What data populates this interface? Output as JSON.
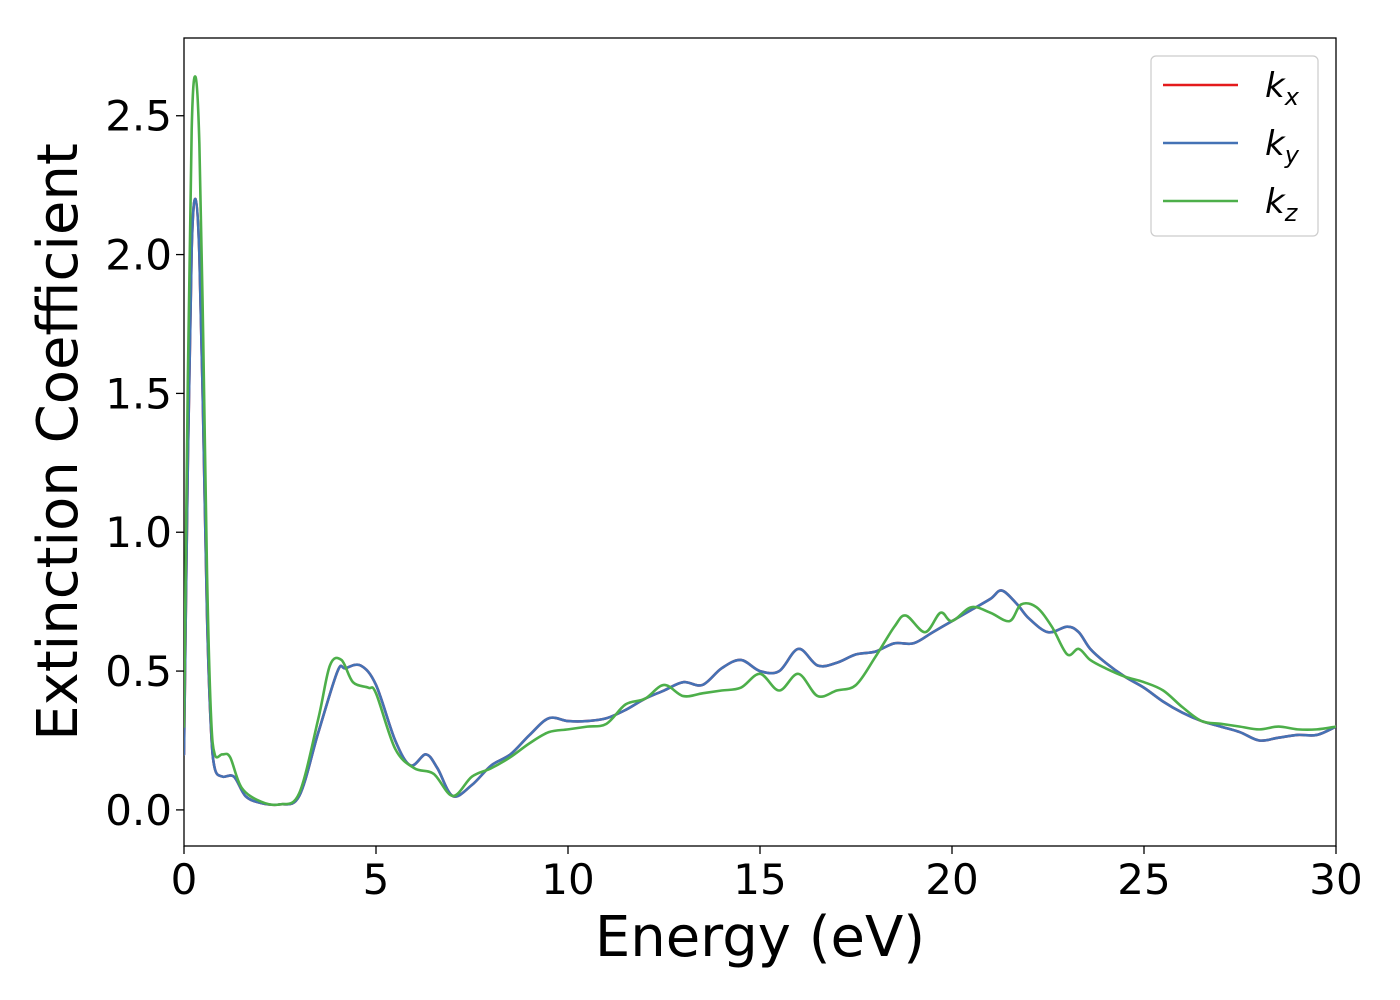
{
  "chart_data": {
    "type": "line",
    "xlabel": "Energy (eV)",
    "ylabel": "Extinction Coefficient",
    "xlim": [
      0,
      30
    ],
    "ylim": [
      -0.13,
      2.78
    ],
    "xticks": [
      0,
      5,
      10,
      15,
      20,
      25,
      30
    ],
    "xtick_labels": [
      "0",
      "5",
      "10",
      "15",
      "20",
      "25",
      "30"
    ],
    "yticks": [
      0.0,
      0.5,
      1.0,
      1.5,
      2.0,
      2.5
    ],
    "ytick_labels": [
      "0.0",
      "0.5",
      "1.0",
      "1.5",
      "2.0",
      "2.5"
    ],
    "grid": false,
    "legend_position": "top-right",
    "series": [
      {
        "name": "k",
        "subscript": "x",
        "color": "#e41a1c",
        "x": [
          0,
          0.1,
          0.2,
          0.3,
          0.4,
          0.5,
          0.6,
          0.7,
          0.8,
          1.0,
          1.3,
          1.6,
          2.0,
          2.5,
          3.0,
          3.5,
          4.0,
          4.2,
          4.6,
          5.0,
          5.5,
          5.9,
          6.3,
          6.6,
          7.0,
          7.5,
          8.0,
          8.5,
          9.0,
          9.5,
          10.0,
          10.5,
          11.0,
          11.5,
          12.0,
          12.5,
          13.0,
          13.5,
          14.0,
          14.5,
          15.0,
          15.5,
          16.0,
          16.5,
          17.0,
          17.5,
          18.0,
          18.5,
          19.0,
          19.5,
          20.0,
          20.5,
          21.0,
          21.3,
          21.7,
          22.0,
          22.5,
          23.0,
          23.3,
          23.6,
          24.0,
          24.5,
          25.0,
          25.5,
          26.0,
          26.5,
          27.0,
          27.5,
          28.0,
          28.5,
          29.0,
          29.5,
          30.0
        ],
        "y": [
          0.2,
          1.25,
          2.02,
          2.2,
          2.0,
          1.4,
          0.7,
          0.3,
          0.15,
          0.12,
          0.12,
          0.05,
          0.025,
          0.02,
          0.05,
          0.28,
          0.5,
          0.51,
          0.52,
          0.45,
          0.25,
          0.16,
          0.2,
          0.15,
          0.05,
          0.09,
          0.16,
          0.2,
          0.27,
          0.33,
          0.32,
          0.32,
          0.33,
          0.36,
          0.4,
          0.43,
          0.46,
          0.45,
          0.51,
          0.54,
          0.5,
          0.5,
          0.58,
          0.52,
          0.53,
          0.56,
          0.57,
          0.6,
          0.6,
          0.64,
          0.68,
          0.72,
          0.76,
          0.79,
          0.74,
          0.69,
          0.64,
          0.66,
          0.64,
          0.58,
          0.53,
          0.48,
          0.44,
          0.39,
          0.35,
          0.32,
          0.3,
          0.28,
          0.25,
          0.26,
          0.27,
          0.27,
          0.3
        ]
      },
      {
        "name": "k",
        "subscript": "y",
        "color": "#4472b5",
        "x": [
          0,
          0.1,
          0.2,
          0.3,
          0.4,
          0.5,
          0.6,
          0.7,
          0.8,
          1.0,
          1.3,
          1.6,
          2.0,
          2.5,
          3.0,
          3.5,
          4.0,
          4.2,
          4.6,
          5.0,
          5.5,
          5.9,
          6.3,
          6.6,
          7.0,
          7.5,
          8.0,
          8.5,
          9.0,
          9.5,
          10.0,
          10.5,
          11.0,
          11.5,
          12.0,
          12.5,
          13.0,
          13.5,
          14.0,
          14.5,
          15.0,
          15.5,
          16.0,
          16.5,
          17.0,
          17.5,
          18.0,
          18.5,
          19.0,
          19.5,
          20.0,
          20.5,
          21.0,
          21.3,
          21.7,
          22.0,
          22.5,
          23.0,
          23.3,
          23.6,
          24.0,
          24.5,
          25.0,
          25.5,
          26.0,
          26.5,
          27.0,
          27.5,
          28.0,
          28.5,
          29.0,
          29.5,
          30.0
        ],
        "y": [
          0.2,
          1.25,
          2.02,
          2.2,
          2.0,
          1.4,
          0.7,
          0.3,
          0.15,
          0.12,
          0.12,
          0.05,
          0.025,
          0.02,
          0.05,
          0.28,
          0.5,
          0.51,
          0.52,
          0.45,
          0.25,
          0.16,
          0.2,
          0.15,
          0.05,
          0.09,
          0.16,
          0.2,
          0.27,
          0.33,
          0.32,
          0.32,
          0.33,
          0.36,
          0.4,
          0.43,
          0.46,
          0.45,
          0.51,
          0.54,
          0.5,
          0.5,
          0.58,
          0.52,
          0.53,
          0.56,
          0.57,
          0.6,
          0.6,
          0.64,
          0.68,
          0.72,
          0.76,
          0.79,
          0.74,
          0.69,
          0.64,
          0.66,
          0.64,
          0.58,
          0.53,
          0.48,
          0.44,
          0.39,
          0.35,
          0.32,
          0.3,
          0.28,
          0.25,
          0.26,
          0.27,
          0.27,
          0.3
        ]
      },
      {
        "name": "k",
        "subscript": "z",
        "color": "#4daf4a",
        "x": [
          0,
          0.1,
          0.2,
          0.3,
          0.4,
          0.5,
          0.6,
          0.7,
          0.8,
          1.0,
          1.2,
          1.5,
          2.0,
          2.5,
          3.0,
          3.5,
          3.8,
          4.1,
          4.4,
          4.8,
          5.0,
          5.5,
          6.0,
          6.5,
          7.0,
          7.5,
          8.0,
          8.5,
          9.0,
          9.5,
          10.0,
          10.5,
          11.0,
          11.5,
          12.0,
          12.5,
          13.0,
          13.5,
          14.0,
          14.5,
          15.0,
          15.5,
          16.0,
          16.5,
          17.0,
          17.5,
          18.0,
          18.5,
          18.8,
          19.3,
          19.7,
          20.0,
          20.5,
          21.0,
          21.5,
          21.8,
          22.2,
          22.6,
          23.0,
          23.3,
          23.6,
          24.0,
          24.5,
          25.0,
          25.5,
          26.0,
          26.5,
          27.0,
          27.5,
          28.0,
          28.5,
          29.0,
          29.5,
          30.0
        ],
        "y": [
          0.3,
          1.55,
          2.45,
          2.64,
          2.4,
          1.7,
          0.85,
          0.35,
          0.2,
          0.2,
          0.19,
          0.08,
          0.03,
          0.02,
          0.06,
          0.33,
          0.52,
          0.54,
          0.46,
          0.44,
          0.42,
          0.22,
          0.15,
          0.13,
          0.05,
          0.12,
          0.15,
          0.19,
          0.24,
          0.28,
          0.29,
          0.3,
          0.31,
          0.38,
          0.4,
          0.45,
          0.41,
          0.42,
          0.43,
          0.44,
          0.49,
          0.43,
          0.49,
          0.41,
          0.43,
          0.45,
          0.55,
          0.66,
          0.7,
          0.64,
          0.71,
          0.68,
          0.73,
          0.71,
          0.68,
          0.74,
          0.73,
          0.66,
          0.56,
          0.58,
          0.54,
          0.51,
          0.48,
          0.46,
          0.43,
          0.37,
          0.32,
          0.31,
          0.3,
          0.29,
          0.3,
          0.29,
          0.29,
          0.3
        ]
      }
    ]
  }
}
